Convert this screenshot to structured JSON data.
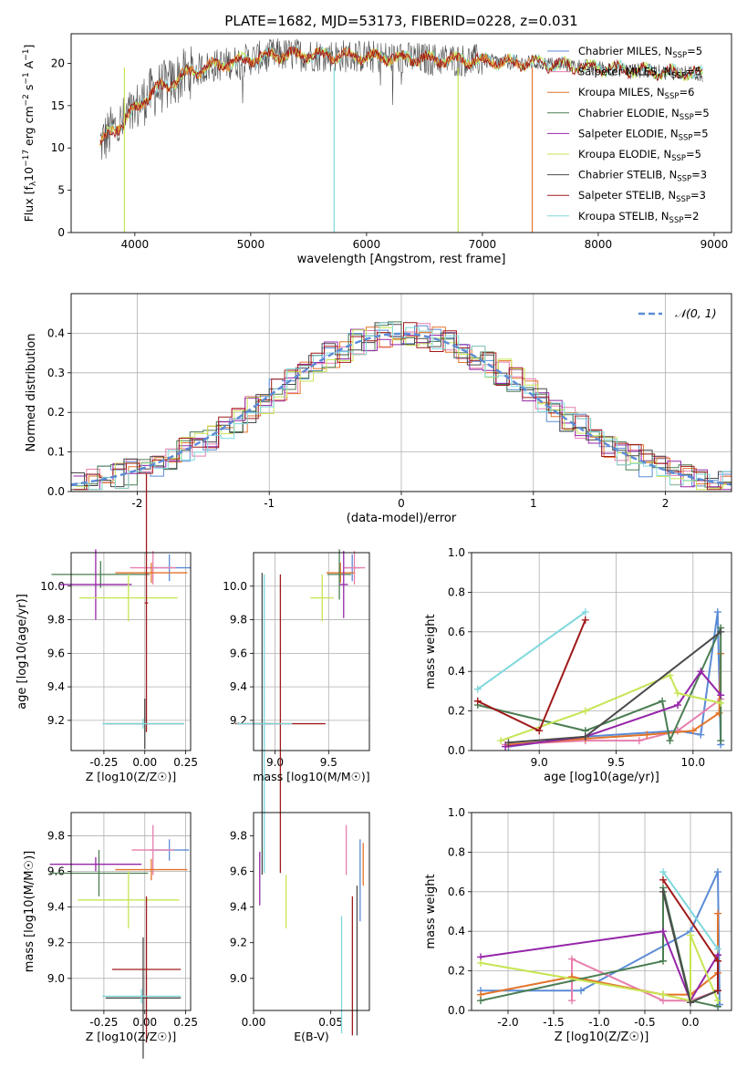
{
  "title": "PLATE=1682, MJD=53173, FIBERID=0228, z=0.031",
  "colors": {
    "chabrier_miles": "#5b8bd6",
    "salpeter_miles": "#e77fae",
    "kroupa_miles": "#e3742a",
    "chabrier_elodie": "#4a7d52",
    "salpeter_elodie": "#9526a8",
    "kroupa_elodie": "#c6e553",
    "chabrier_stelib": "#4a4a4a",
    "salpeter_stelib": "#a01a1a",
    "kroupa_stelib": "#7fd8dc",
    "normal": "#5b8bd6",
    "grid": "#b0b0b0"
  },
  "chart_data": [
    {
      "id": "spectrum",
      "type": "line",
      "title": "PLATE=1682, MJD=53173, FIBERID=0228, z=0.031",
      "xlabel": "wavelength [Angstrom, rest frame]",
      "ylabel": "Flux [f",
      "xlim": [
        3450,
        9150
      ],
      "ylim": [
        0,
        23.5
      ],
      "xticks": [
        "4000",
        "5000",
        "6000",
        "7000",
        "8000",
        "9000"
      ],
      "yticks": [
        "0",
        "5",
        "10",
        "15",
        "20"
      ],
      "grid": false,
      "legend_position": "top-right",
      "legend": [
        "Chabrier MILES, N_SSP=5",
        "Salpeter MILES, N_SSP=5",
        "Kroupa MILES, N_SSP=6",
        "Chabrier ELODIE, N_SSP=5",
        "Salpeter ELODIE, N_SSP=5",
        "Kroupa ELODIE, N_SSP=5",
        "Chabrier STELIB, N_SSP=3",
        "Salpeter STELIB, N_SSP=3",
        "Kroupa STELIB, N_SSP=2"
      ],
      "continuum": {
        "x": [
          3700,
          3800,
          3900,
          4000,
          4100,
          4200,
          4300,
          4400,
          4500,
          4600,
          4800,
          5000,
          5200,
          5500,
          6000,
          6500,
          7000,
          7500,
          8000,
          8500,
          8900
        ],
        "y": [
          10.5,
          12,
          13,
          14.5,
          16,
          17,
          17.5,
          18.5,
          19,
          19.5,
          20,
          20.5,
          21,
          21,
          20.8,
          20.5,
          20.3,
          20,
          19.5,
          19,
          18.7
        ]
      },
      "data_end": [
        {
          "series": "kroupa_elodie",
          "x": 3910
        },
        {
          "series": "kroupa_stelib",
          "x": 5720
        },
        {
          "series": "kroupa_elodie",
          "x": 6790
        },
        {
          "series": "kroupa_miles",
          "x": 7430
        }
      ]
    },
    {
      "id": "residuals",
      "type": "histogram",
      "xlabel": "(data-model)/error",
      "ylabel": "Normed distribution",
      "xlim": [
        -2.5,
        2.5
      ],
      "ylim": [
        0,
        0.5
      ],
      "xticks": [
        "-2",
        "-1",
        "0",
        "1",
        "2"
      ],
      "yticks": [
        "0.0",
        "0.1",
        "0.2",
        "0.3",
        "0.4"
      ],
      "grid": true,
      "legend_position": "top-right",
      "legend": [
        "𝒩(0, 1)"
      ],
      "bin_width": 0.1,
      "curve": "gaussian N(0,1)"
    },
    {
      "id": "z_age",
      "type": "scatter",
      "xlabel": "Z [log10(Z/Z☉)]",
      "ylabel": "age [log10(age/yr)]",
      "xlim": [
        -0.45,
        0.28
      ],
      "ylim": [
        9.02,
        10.2
      ],
      "xticks": [
        "-0.25",
        "0.00",
        "0.25"
      ],
      "yticks": [
        "9.2",
        "9.4",
        "9.6",
        "9.8",
        "10.0"
      ],
      "grid": true,
      "points": [
        {
          "series": "chabrier_miles",
          "x": 0.15,
          "y": 10.11,
          "xerr": 0.13,
          "yerr": 0.08
        },
        {
          "series": "salpeter_miles",
          "x": 0.05,
          "y": 10.11,
          "xerr": 0.14,
          "yerr": 0.1
        },
        {
          "series": "kroupa_miles",
          "x": 0.04,
          "y": 10.08,
          "xerr": 0.22,
          "yerr": 0.06
        },
        {
          "series": "chabrier_elodie",
          "x": -0.27,
          "y": 10.07,
          "xerr": 0.3,
          "yerr": 0.08
        },
        {
          "series": "salpeter_elodie",
          "x": -0.3,
          "y": 10.01,
          "xerr": 0.22,
          "yerr": 0.21
        },
        {
          "series": "kroupa_elodie",
          "x": -0.1,
          "y": 9.93,
          "xerr": 0.3,
          "yerr": 0.14
        },
        {
          "series": "chabrier_stelib",
          "x": 0.0,
          "y": 9.18,
          "xerr": 0.24,
          "yerr": 0.15
        },
        {
          "series": "salpeter_stelib",
          "x": 0.01,
          "y": 9.9,
          "xerr": 0.01,
          "yerr": 0.77
        },
        {
          "series": "kroupa_stelib",
          "x": -0.01,
          "y": 9.18,
          "xerr": 0.25,
          "yerr": 0.03
        }
      ]
    },
    {
      "id": "mass_age",
      "type": "scatter",
      "xlabel": "mass [log10(M/M☉)]",
      "ylabel": "",
      "xlim": [
        8.8,
        9.88
      ],
      "ylim": [
        9.02,
        10.2
      ],
      "xticks": [
        "9.0",
        "9.5"
      ],
      "yticks": [
        "9.2",
        "9.4",
        "9.6",
        "9.8",
        "10.0"
      ],
      "grid": true,
      "points": [
        {
          "series": "chabrier_miles",
          "x": 9.72,
          "y": 10.11,
          "xerr": 0.07,
          "yerr": 0.08
        },
        {
          "series": "salpeter_miles",
          "x": 9.74,
          "y": 10.11,
          "xerr": 0.1,
          "yerr": 0.1
        },
        {
          "series": "kroupa_miles",
          "x": 9.61,
          "y": 10.08,
          "xerr": 0.13,
          "yerr": 0.06
        },
        {
          "series": "chabrier_elodie",
          "x": 9.6,
          "y": 10.07,
          "xerr": 0.11,
          "yerr": 0.15
        },
        {
          "series": "salpeter_elodie",
          "x": 9.64,
          "y": 10.01,
          "xerr": 0.04,
          "yerr": 0.2
        },
        {
          "series": "kroupa_elodie",
          "x": 9.44,
          "y": 9.93,
          "xerr": 0.11,
          "yerr": 0.14
        },
        {
          "series": "chabrier_stelib",
          "x": 8.88,
          "y": 9.18,
          "xerr": 0.08,
          "yerr": 0.9
        },
        {
          "series": "salpeter_stelib",
          "x": 9.05,
          "y": 9.18,
          "xerr": 0.42,
          "yerr": 0.89
        },
        {
          "series": "kroupa_stelib",
          "x": 8.9,
          "y": 9.18,
          "xerr": 0.26,
          "yerr": 0.89
        }
      ]
    },
    {
      "id": "age_weight",
      "type": "line",
      "xlabel": "age [log10(age/yr)]",
      "ylabel": "mass weight",
      "xlim": [
        8.56,
        10.25
      ],
      "ylim": [
        0,
        1.0
      ],
      "xticks": [
        "9.0",
        "9.5",
        "10.0"
      ],
      "yticks": [
        "0.0",
        "0.2",
        "0.4",
        "0.6",
        "0.8",
        "1.0"
      ],
      "grid": true,
      "series": [
        {
          "key": "chabrier_miles",
          "x": [
            8.8,
            9.3,
            9.9,
            10.05,
            10.16,
            10.18
          ],
          "y": [
            0.02,
            0.07,
            0.1,
            0.08,
            0.7,
            0.03
          ]
        },
        {
          "key": "salpeter_miles",
          "x": [
            8.78,
            9.3,
            9.65,
            9.9,
            10.18
          ],
          "y": [
            0.03,
            0.05,
            0.05,
            0.1,
            0.26
          ]
        },
        {
          "key": "kroupa_miles",
          "x": [
            8.8,
            9.3,
            9.7,
            10.0,
            10.17,
            10.18
          ],
          "y": [
            0.03,
            0.06,
            0.08,
            0.1,
            0.19,
            0.49
          ]
        },
        {
          "key": "chabrier_elodie",
          "x": [
            8.6,
            9.3,
            9.8,
            9.85,
            10.18,
            10.18
          ],
          "y": [
            0.23,
            0.1,
            0.25,
            0.05,
            0.62,
            0.05
          ]
        },
        {
          "key": "salpeter_elodie",
          "x": [
            8.78,
            9.3,
            9.9,
            10.05,
            10.18
          ],
          "y": [
            0.02,
            0.07,
            0.23,
            0.4,
            0.28
          ]
        },
        {
          "key": "kroupa_elodie",
          "x": [
            8.75,
            9.3,
            9.85,
            9.9,
            10.18
          ],
          "y": [
            0.05,
            0.2,
            0.38,
            0.29,
            0.24
          ]
        },
        {
          "key": "chabrier_stelib",
          "x": [
            8.8,
            9.3,
            10.18
          ],
          "y": [
            0.04,
            0.07,
            0.6
          ]
        },
        {
          "key": "salpeter_stelib",
          "x": [
            8.6,
            9.0,
            9.3
          ],
          "y": [
            0.25,
            0.1,
            0.66
          ]
        },
        {
          "key": "kroupa_stelib",
          "x": [
            8.6,
            9.3
          ],
          "y": [
            0.31,
            0.7
          ]
        }
      ]
    },
    {
      "id": "z_mass",
      "type": "scatter",
      "xlabel": "Z [log10(Z/Z☉)]",
      "ylabel": "mass [log10(M/M☉)]",
      "xlim": [
        -0.45,
        0.28
      ],
      "ylim": [
        8.82,
        9.93
      ],
      "xticks": [
        "-0.25",
        "0.00",
        "0.25"
      ],
      "yticks": [
        "9.0",
        "9.2",
        "9.4",
        "9.6",
        "9.8"
      ],
      "grid": true,
      "points": [
        {
          "series": "chabrier_miles",
          "x": 0.15,
          "y": 9.72,
          "xerr": 0.12,
          "yerr": 0.06
        },
        {
          "series": "salpeter_miles",
          "x": 0.05,
          "y": 9.72,
          "xerr": 0.13,
          "yerr": 0.14
        },
        {
          "series": "kroupa_miles",
          "x": 0.04,
          "y": 9.61,
          "xerr": 0.22,
          "yerr": 0.06
        },
        {
          "series": "chabrier_elodie",
          "x": -0.28,
          "y": 9.59,
          "xerr": 0.3,
          "yerr": 0.13
        },
        {
          "series": "salpeter_elodie",
          "x": -0.3,
          "y": 9.64,
          "xerr": 0.28,
          "yerr": 0.04
        },
        {
          "series": "kroupa_elodie",
          "x": -0.1,
          "y": 9.44,
          "xerr": 0.31,
          "yerr": 0.16
        },
        {
          "series": "chabrier_stelib",
          "x": -0.01,
          "y": 8.89,
          "xerr": 0.23,
          "yerr": 0.34
        },
        {
          "series": "salpeter_stelib",
          "x": 0.01,
          "y": 9.05,
          "xerr": 0.21,
          "yerr": 0.41
        },
        {
          "series": "kroupa_stelib",
          "x": -0.02,
          "y": 8.9,
          "xerr": 0.24,
          "yerr": 0.04
        }
      ]
    },
    {
      "id": "ebv_mass",
      "type": "scatter",
      "xlabel": "E(B-V)",
      "ylabel": "",
      "xlim": [
        0,
        0.075
      ],
      "ylim": [
        8.82,
        9.93
      ],
      "xticks": [
        "0.00",
        "0.05"
      ],
      "yticks": [
        "9.0",
        "9.2",
        "9.4",
        "9.6",
        "9.8"
      ],
      "grid": false,
      "points": [
        {
          "series": "chabrier_miles",
          "x": 0.069,
          "y": 9.55,
          "xerr": 0,
          "yerr": 0.23
        },
        {
          "series": "salpeter_miles",
          "x": 0.06,
          "y": 9.72,
          "xerr": 0,
          "yerr": 0.14
        },
        {
          "series": "kroupa_miles",
          "x": 0.071,
          "y": 9.64,
          "xerr": 0,
          "yerr": 0.12
        },
        {
          "series": "salpeter_elodie",
          "x": 0.004,
          "y": 9.56,
          "xerr": 0,
          "yerr": 0.15
        },
        {
          "series": "kroupa_elodie",
          "x": 0.021,
          "y": 9.43,
          "xerr": 0,
          "yerr": 0.15
        },
        {
          "series": "chabrier_stelib",
          "x": 0.067,
          "y": 9.1,
          "xerr": 0,
          "yerr": 0.42
        },
        {
          "series": "salpeter_stelib",
          "x": 0.064,
          "y": 9.07,
          "xerr": 0,
          "yerr": 0.39
        },
        {
          "series": "kroupa_stelib",
          "x": 0.057,
          "y": 9.02,
          "xerr": 0,
          "yerr": 0.33
        }
      ]
    },
    {
      "id": "z_weight",
      "type": "line",
      "xlabel": "Z [log10(Z/Z☉)]",
      "ylabel": "mass weight",
      "xlim": [
        -2.4,
        0.45
      ],
      "ylim": [
        0,
        1.0
      ],
      "xticks": [
        "-2.0",
        "-1.5",
        "-1.0",
        "-0.5",
        "0.0"
      ],
      "yticks": [
        "0.0",
        "0.2",
        "0.4",
        "0.6",
        "0.8",
        "1.0"
      ],
      "grid": true,
      "series": [
        {
          "key": "chabrier_miles",
          "x": [
            -2.3,
            -1.3,
            -1.2,
            0.0,
            0.3,
            0.32
          ],
          "y": [
            0.1,
            0.1,
            0.1,
            0.4,
            0.7,
            0.03
          ]
        },
        {
          "key": "salpeter_miles",
          "x": [
            -1.3,
            -1.3,
            -0.3,
            0.0,
            0.3
          ],
          "y": [
            0.05,
            0.26,
            0.05,
            0.05,
            0.1
          ]
        },
        {
          "key": "kroupa_miles",
          "x": [
            -2.3,
            -1.3,
            -0.3,
            0.0,
            0.3,
            0.3
          ],
          "y": [
            0.08,
            0.17,
            0.08,
            0.08,
            0.19,
            0.49
          ]
        },
        {
          "key": "chabrier_elodie",
          "x": [
            -2.3,
            -0.3,
            -0.3,
            0.0,
            0.3
          ],
          "y": [
            0.05,
            0.25,
            0.62,
            0.05,
            0.02
          ]
        },
        {
          "key": "salpeter_elodie",
          "x": [
            -2.3,
            -0.3,
            0.0,
            0.3
          ],
          "y": [
            0.27,
            0.4,
            0.05,
            0.28
          ]
        },
        {
          "key": "kroupa_elodie",
          "x": [
            -2.3,
            -0.3,
            0.0,
            0.0,
            0.3
          ],
          "y": [
            0.24,
            0.08,
            0.05,
            0.38,
            0.05
          ]
        },
        {
          "key": "chabrier_stelib",
          "x": [
            -0.3,
            0.0,
            0.3
          ],
          "y": [
            0.6,
            0.04,
            0.1
          ]
        },
        {
          "key": "salpeter_stelib",
          "x": [
            -0.3,
            0.3,
            0.3
          ],
          "y": [
            0.66,
            0.25,
            0.1
          ]
        },
        {
          "key": "kroupa_stelib",
          "x": [
            -0.3,
            0.3
          ],
          "y": [
            0.7,
            0.31
          ]
        }
      ]
    }
  ]
}
